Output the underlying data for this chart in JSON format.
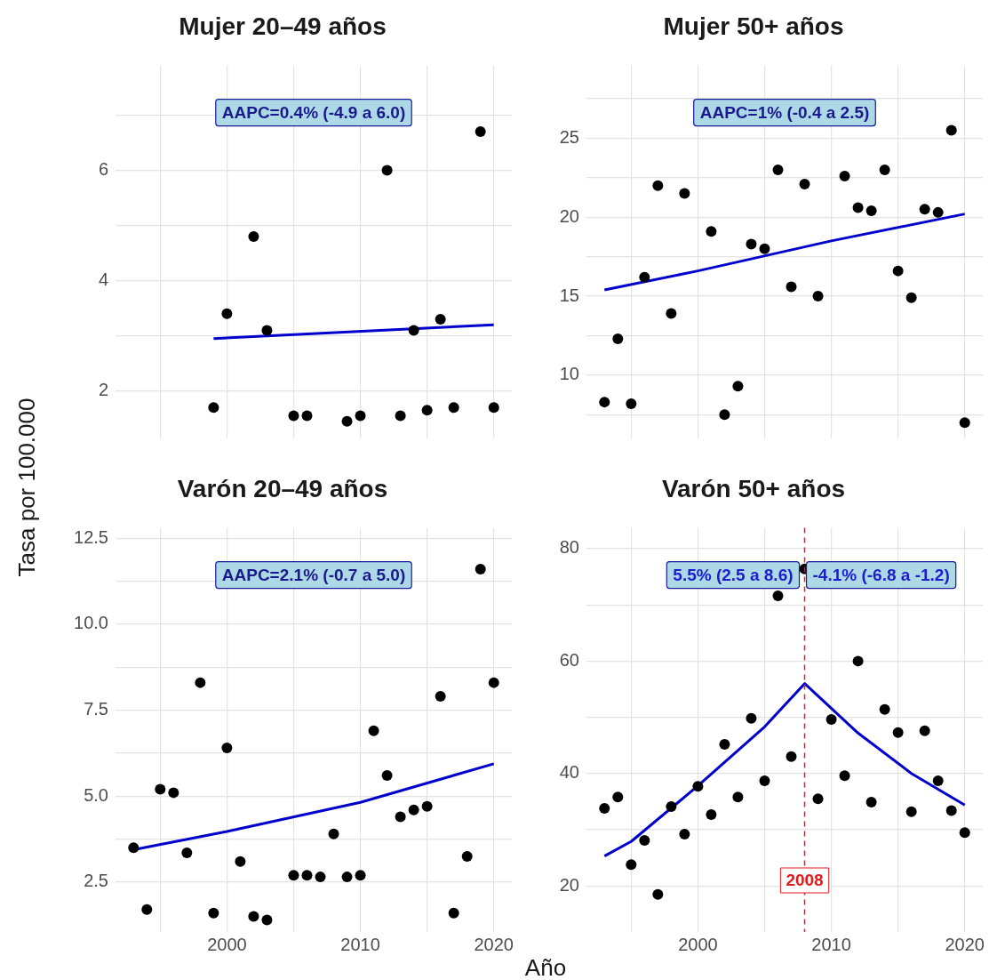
{
  "chart_data": [
    {
      "type": "scatter",
      "title": "Mujer 20–49 años",
      "ylabel": "Tasa por 100.000",
      "xlim": [
        1991.65,
        2021.35
      ],
      "ylim": [
        1.14,
        7.9
      ],
      "xticks": [
        {
          "value": 1995,
          "label": null
        },
        2000,
        {
          "value": 2005,
          "label": null
        },
        2010,
        {
          "value": 2015,
          "label": null
        },
        2020
      ],
      "yticks": [
        2,
        {
          "value": 3,
          "label": null
        },
        4,
        {
          "value": 5,
          "label": null
        },
        6,
        {
          "value": 7,
          "label": null
        }
      ],
      "grid": true,
      "tick_labels": "y",
      "annotations": [
        "AAPC=0.4% (-4.9 a 6.0)"
      ],
      "series": [
        {
          "type": "scatter",
          "color": "#000000",
          "marker": "circle",
          "x": [
            1999,
            2000,
            2002,
            2003,
            2005,
            2006,
            2009,
            2010,
            2012,
            2013,
            2014,
            2015,
            2016,
            2017,
            2019,
            2020
          ],
          "values": [
            1.7,
            3.4,
            4.8,
            3.1,
            1.55,
            1.55,
            1.45,
            1.55,
            6.0,
            1.55,
            3.1,
            1.65,
            3.3,
            1.7,
            6.7,
            1.7
          ]
        },
        {
          "type": "line",
          "color": "#0000cc",
          "marker": "none",
          "x": [
            1999,
            2020
          ],
          "values": [
            2.95,
            3.2
          ]
        }
      ]
    },
    {
      "type": "scatter",
      "title": "Mujer 50+ años",
      "xlim": [
        1991.65,
        2021.35
      ],
      "ylim": [
        6.0,
        29.6
      ],
      "xticks": [
        {
          "value": 1995,
          "label": null
        },
        2000,
        {
          "value": 2005,
          "label": null
        },
        2010,
        {
          "value": 2015,
          "label": null
        },
        2020
      ],
      "yticks": [
        {
          "value": 7.5,
          "label": null
        },
        10,
        {
          "value": 12.5,
          "label": null
        },
        15,
        {
          "value": 17.5,
          "label": null
        },
        20,
        {
          "value": 22.5,
          "label": null
        },
        25,
        {
          "value": 27.5,
          "label": null
        }
      ],
      "grid": true,
      "tick_labels": "y",
      "annotations": [
        "AAPC=1% (-0.4 a 2.5)"
      ],
      "series": [
        {
          "type": "scatter",
          "color": "#000000",
          "marker": "circle",
          "x": [
            1993,
            1994,
            1995,
            1996,
            1997,
            1998,
            1999,
            2001,
            2002,
            2003,
            2004,
            2005,
            2006,
            2007,
            2008,
            2009,
            2011,
            2012,
            2013,
            2014,
            2015,
            2016,
            2017,
            2018,
            2019,
            2020
          ],
          "values": [
            8.3,
            12.3,
            8.2,
            16.2,
            22.0,
            13.9,
            21.5,
            19.1,
            7.5,
            9.3,
            18.3,
            18.0,
            23.0,
            15.6,
            22.1,
            15.0,
            22.6,
            20.6,
            20.4,
            23.0,
            16.6,
            14.9,
            20.5,
            20.3,
            25.5,
            7.0
          ]
        },
        {
          "type": "line",
          "color": "#0000cc",
          "marker": "none",
          "x": [
            1993,
            2000,
            2010,
            2020
          ],
          "values": [
            15.4,
            16.6,
            18.5,
            20.2
          ]
        }
      ]
    },
    {
      "type": "scatter",
      "title": "Varón 20–49 años",
      "xlim": [
        1991.65,
        2021.35
      ],
      "ylim": [
        1.05,
        12.8
      ],
      "xticks": [
        {
          "value": 1995,
          "label": null
        },
        2000,
        {
          "value": 2005,
          "label": null
        },
        2010,
        {
          "value": 2015,
          "label": null
        },
        2020
      ],
      "yticks": [
        2.5,
        {
          "value": 3.75,
          "label": null
        },
        {
          "value": 5,
          "label": "5.0"
        },
        {
          "value": 6.25,
          "label": null
        },
        7.5,
        {
          "value": 8.75,
          "label": null
        },
        {
          "value": 10,
          "label": "10.0"
        },
        {
          "value": 11.25,
          "label": null
        },
        12.5
      ],
      "grid": true,
      "annotations": [
        "AAPC=2.1% (-0.7 a 5.0)"
      ],
      "series": [
        {
          "type": "scatter",
          "color": "#000000",
          "marker": "circle",
          "x": [
            1993,
            1994,
            1995,
            1996,
            1997,
            1998,
            1999,
            2000,
            2001,
            2002,
            2003,
            2005,
            2006,
            2007,
            2008,
            2009,
            2010,
            2011,
            2012,
            2013,
            2014,
            2015,
            2016,
            2017,
            2018,
            2019,
            2020
          ],
          "values": [
            3.5,
            1.7,
            5.2,
            5.1,
            3.35,
            8.3,
            1.6,
            6.4,
            3.1,
            1.5,
            1.4,
            2.7,
            2.7,
            2.65,
            3.9,
            2.65,
            2.7,
            6.9,
            5.6,
            4.4,
            4.6,
            4.7,
            7.9,
            1.6,
            3.25,
            11.6,
            8.3
          ]
        },
        {
          "type": "line",
          "color": "#0000cc",
          "marker": "none",
          "x": [
            1993,
            2000,
            2010,
            2020
          ],
          "values": [
            3.44,
            3.97,
            4.82,
            5.94
          ]
        }
      ]
    },
    {
      "type": "scatter",
      "title": "Varón 50+ años",
      "xlabel": "Año",
      "xlim": [
        1991.65,
        2021.35
      ],
      "ylim": [
        11.8,
        83.7
      ],
      "xticks": [
        {
          "value": 1995,
          "label": null
        },
        2000,
        {
          "value": 2005,
          "label": null
        },
        2010,
        {
          "value": 2015,
          "label": null
        },
        2020
      ],
      "yticks": [
        20,
        {
          "value": 30,
          "label": null
        },
        40,
        {
          "value": 50,
          "label": null
        },
        60,
        {
          "value": 70,
          "label": null
        },
        80
      ],
      "grid": true,
      "annotations": [
        "5.5% (2.5 a 8.6)",
        "-4.1% (-6.8 a -1.2)"
      ],
      "ref_lines": [
        {
          "axis": "x",
          "value": 2008,
          "label": "2008",
          "color": "#e41a1c",
          "line_style": "dashed"
        }
      ],
      "series": [
        {
          "type": "scatter",
          "color": "#000000",
          "marker": "circle",
          "x": [
            1993,
            1994,
            1995,
            1996,
            1997,
            1998,
            1999,
            2000,
            2001,
            2002,
            2003,
            2004,
            2005,
            2006,
            2007,
            2008,
            2009,
            2010,
            2011,
            2012,
            2013,
            2014,
            2015,
            2016,
            2017,
            2018,
            2019,
            2020
          ],
          "values": [
            33.8,
            35.8,
            23.8,
            28.1,
            18.5,
            34.1,
            29.2,
            37.7,
            32.7,
            45.2,
            35.8,
            49.8,
            38.7,
            71.6,
            43.0,
            76.4,
            35.5,
            49.6,
            39.6,
            60.0,
            34.9,
            51.4,
            47.3,
            33.2,
            47.6,
            38.7,
            33.4,
            29.5
          ]
        },
        {
          "type": "line",
          "color": "#0000cc",
          "marker": "none",
          "x": [
            1993,
            1995,
            2000,
            2005,
            2008,
            2012,
            2016,
            2020
          ],
          "values": [
            25.3,
            27.9,
            37.8,
            48.3,
            56.0,
            47.2,
            40.0,
            34.4
          ]
        }
      ]
    }
  ]
}
